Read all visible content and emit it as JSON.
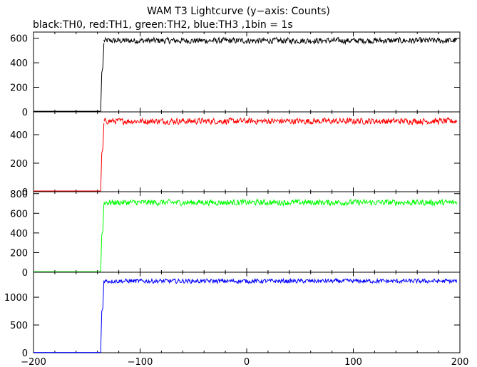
{
  "chart_data": {
    "type": "line",
    "title": "WAM T3 Lightcurve (y−axis: Counts)",
    "subtitle": "black:TH0, red:TH1, green:TH2, blue:TH3 ,1bin = 1s",
    "xlim": [
      -200,
      200
    ],
    "x_ticks": [
      -200,
      -100,
      0,
      100,
      200
    ],
    "x_tick_labels": [
      "−200",
      "−100",
      "0",
      "100",
      "200"
    ],
    "grid": false,
    "panels": [
      {
        "series_name": "TH0",
        "color": "#000000",
        "ylim": [
          0,
          650
        ],
        "y_ticks": [
          0,
          200,
          400,
          600
        ],
        "y_tick_labels": [
          "0",
          "200",
          "400",
          "600"
        ],
        "segments": [
          {
            "x": [
              -200,
              -137
            ],
            "y": [
              5,
              5
            ]
          },
          {
            "x": [
              -137,
              -136,
              -135,
              -134
            ],
            "y": [
              5,
              320,
              360,
              560
            ]
          }
        ],
        "noisy": {
          "x_start": -134,
          "x_end": 197,
          "mean": 580,
          "amplitude": 28
        }
      },
      {
        "series_name": "TH1",
        "color": "#ff0000",
        "ylim": [
          0,
          560
        ],
        "y_ticks": [
          0,
          200,
          400
        ],
        "y_tick_labels": [
          "0",
          "200",
          "400"
        ],
        "segments": [
          {
            "x": [
              -200,
              -137
            ],
            "y": [
              5,
              5
            ]
          },
          {
            "x": [
              -137,
              -136,
              -135,
              -134
            ],
            "y": [
              5,
              270,
              300,
              480
            ]
          }
        ],
        "noisy": {
          "x_start": -134,
          "x_end": 197,
          "mean": 495,
          "amplitude": 25
        }
      },
      {
        "series_name": "TH2",
        "color": "#00ff00",
        "ylim": [
          0,
          820
        ],
        "y_ticks": [
          0,
          200,
          400,
          600,
          800
        ],
        "y_tick_labels": [
          "0",
          "200",
          "400",
          "600",
          "800"
        ],
        "segments": [
          {
            "x": [
              -200,
              -137
            ],
            "y": [
              5,
              5
            ]
          },
          {
            "x": [
              -137,
              -136,
              -135,
              -134
            ],
            "y": [
              5,
              380,
              420,
              700
            ]
          }
        ],
        "noisy": {
          "x_start": -134,
          "x_end": 197,
          "mean": 710,
          "amplitude": 35
        }
      },
      {
        "series_name": "TH3",
        "color": "#0000ff",
        "ylim": [
          0,
          1450
        ],
        "y_ticks": [
          0,
          500,
          1000
        ],
        "y_tick_labels": [
          "0",
          "500",
          "1000"
        ],
        "segments": [
          {
            "x": [
              -200,
              -137
            ],
            "y": [
              5,
              5
            ]
          },
          {
            "x": [
              -137,
              -136,
              -135,
              -134
            ],
            "y": [
              5,
              750,
              800,
              1300
            ]
          }
        ],
        "noisy": {
          "x_start": -134,
          "x_end": 197,
          "mean": 1290,
          "amplitude": 45
        }
      }
    ]
  }
}
